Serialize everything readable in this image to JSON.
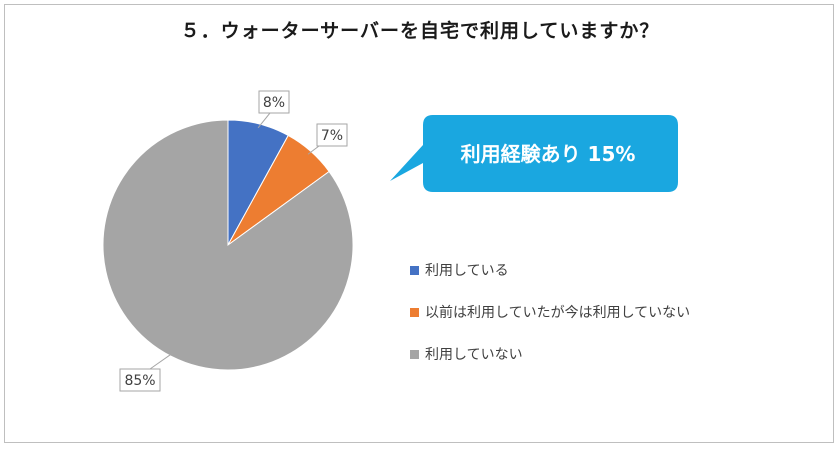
{
  "chart_data": {
    "type": "pie",
    "title": "５．ウォーターサーバーを自宅で利用していますか？",
    "slices": [
      {
        "label": "利用している",
        "value": 8,
        "display": "8%",
        "color": "#4472C4"
      },
      {
        "label": "以前は利用していたが今は利用していない",
        "value": 7,
        "display": "7%",
        "color": "#ED7D31"
      },
      {
        "label": "利用していない",
        "value": 85,
        "display": "85%",
        "color": "#A5A5A5"
      }
    ],
    "legend_placement": "right"
  },
  "callout": {
    "text": "利用経験あり 15%",
    "color": "#1AA7E0"
  }
}
